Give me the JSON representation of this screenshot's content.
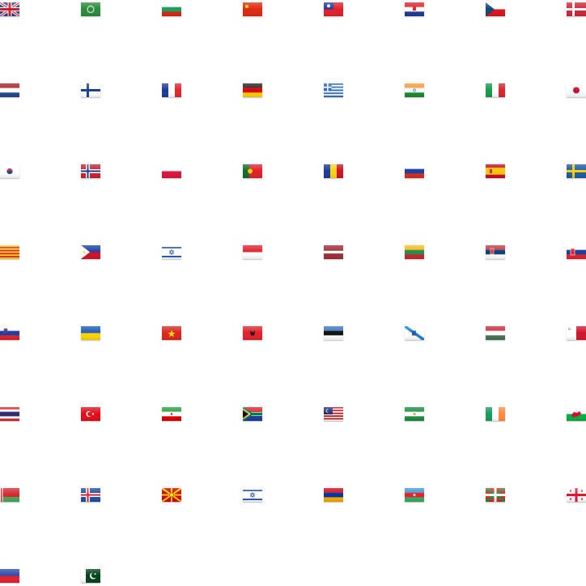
{
  "flags": [
    "united-kingdom",
    "saudi-arabia",
    "bulgaria",
    "china",
    "taiwan",
    "croatia",
    "czech-republic",
    "denmark",
    "netherlands",
    "finland",
    "france",
    "germany",
    "greece",
    "india",
    "italy",
    "japan",
    "south-korea",
    "norway",
    "poland",
    "portugal",
    "romania",
    "russia",
    "spain",
    "sweden",
    "catalonia",
    "philippines",
    "israel",
    "indonesia",
    "latvia",
    "lithuania",
    "serbia",
    "slovakia",
    "slovenia",
    "ukraine",
    "vietnam",
    "albania",
    "estonia",
    "galicia",
    "hungary",
    "malta",
    "thailand",
    "turkey",
    "iran",
    "south-africa",
    "malaysia",
    "andalusia",
    "ireland",
    "wales",
    "belarus",
    "iceland",
    "macedonia",
    "israel",
    "armenia",
    "azerbaijan",
    "basque-country",
    "georgia",
    "haiti",
    "pakistan"
  ]
}
